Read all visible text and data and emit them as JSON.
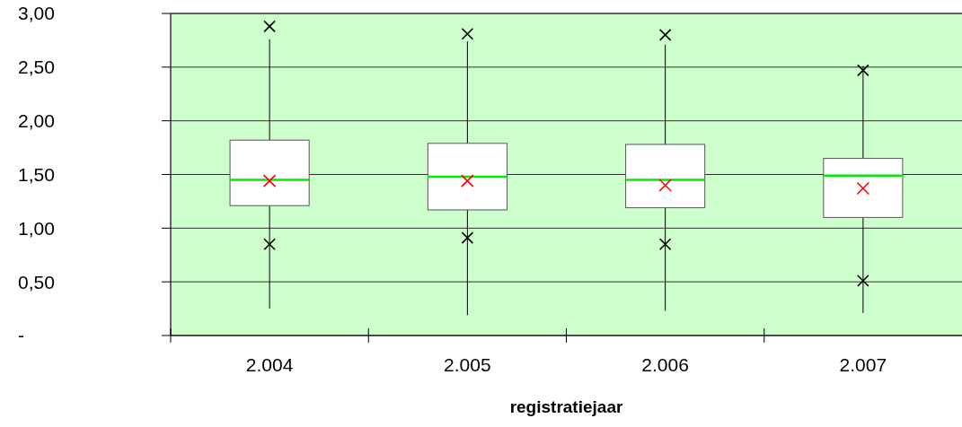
{
  "chart_data": {
    "type": "box",
    "xlabel": "registratiejaar",
    "categories": [
      "2.004",
      "2.005",
      "2.006",
      "2.007"
    ],
    "boxes": [
      {
        "low": 0.25,
        "q1": 1.21,
        "median": 1.45,
        "q3": 1.82,
        "high": 2.76,
        "mean": 1.44,
        "outliers": [
          2.88,
          0.85
        ]
      },
      {
        "low": 0.19,
        "q1": 1.17,
        "median": 1.48,
        "q3": 1.79,
        "high": 2.74,
        "mean": 1.44,
        "outliers": [
          2.81,
          0.91
        ]
      },
      {
        "low": 0.23,
        "q1": 1.19,
        "median": 1.45,
        "q3": 1.78,
        "high": 2.71,
        "mean": 1.4,
        "outliers": [
          2.8,
          0.85
        ]
      },
      {
        "low": 0.21,
        "q1": 1.1,
        "median": 1.49,
        "q3": 1.65,
        "high": 2.51,
        "mean": 1.37,
        "outliers": [
          2.47,
          0.51
        ]
      }
    ],
    "ylim": [
      0,
      3
    ],
    "yticks": [
      {
        "value": 0,
        "label": "-"
      },
      {
        "value": 0.5,
        "label": "0,50"
      },
      {
        "value": 1,
        "label": "1,00"
      },
      {
        "value": 1.5,
        "label": "1,50"
      },
      {
        "value": 2,
        "label": "2,00"
      },
      {
        "value": 2.5,
        "label": "2,50"
      },
      {
        "value": 3,
        "label": "3,00"
      }
    ],
    "grid": "y"
  }
}
